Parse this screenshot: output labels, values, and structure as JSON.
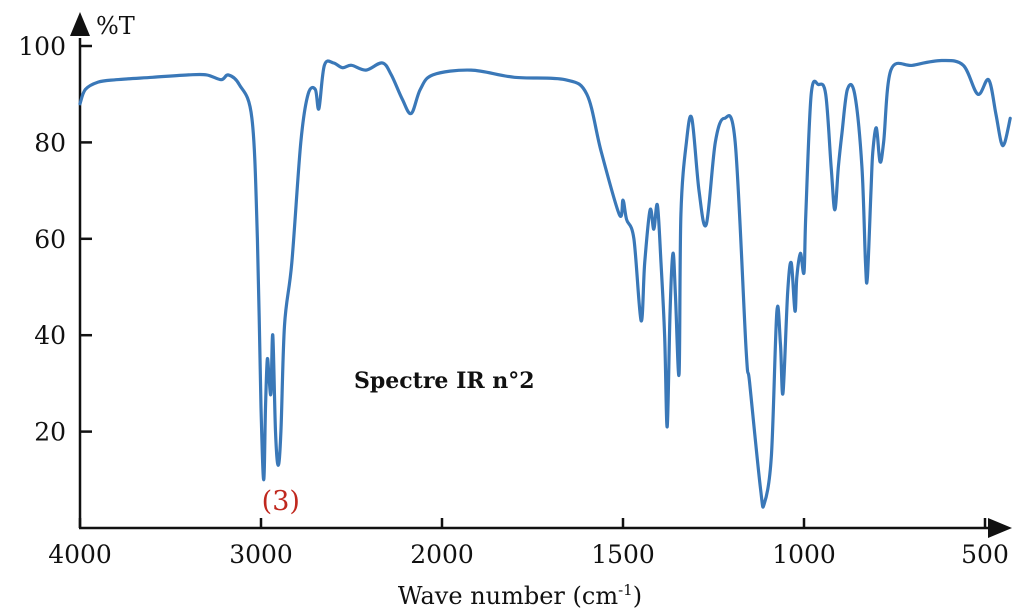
{
  "chart_data": {
    "type": "line",
    "title": "Spectre IR n°2",
    "xlabel_main": "Wave number (cm",
    "xlabel_sup": "-1",
    "xlabel_close": ")",
    "ylabel": "%T",
    "xlim": [
      4000,
      450
    ],
    "ylim": [
      0,
      100
    ],
    "x_reversed": true,
    "grid": false,
    "x_ticks": [
      4000,
      3000,
      2000,
      1500,
      1000,
      500
    ],
    "x_tick_labels": [
      "4000",
      "3000",
      "2000",
      "1500",
      "1000",
      "500"
    ],
    "y_ticks": [
      20,
      40,
      60,
      80,
      100
    ],
    "y_tick_labels": [
      "20",
      "40",
      "60",
      "80",
      "100"
    ],
    "annotation": {
      "text": "(3)",
      "x": 2990,
      "color": "#c0281e"
    },
    "series": [
      {
        "color": "#3a78b8",
        "points": [
          [
            4000,
            88
          ],
          [
            3970,
            91
          ],
          [
            3900,
            92.5
          ],
          [
            3800,
            93
          ],
          [
            3600,
            93.5
          ],
          [
            3400,
            94
          ],
          [
            3300,
            94
          ],
          [
            3220,
            93
          ],
          [
            3180,
            94
          ],
          [
            3120,
            92
          ],
          [
            3050,
            85
          ],
          [
            3020,
            60
          ],
          [
            3000,
            25
          ],
          [
            2985,
            10
          ],
          [
            2975,
            25
          ],
          [
            2965,
            35
          ],
          [
            2955,
            31
          ],
          [
            2945,
            28
          ],
          [
            2935,
            40
          ],
          [
            2920,
            20
          ],
          [
            2905,
            13
          ],
          [
            2890,
            20
          ],
          [
            2870,
            42
          ],
          [
            2830,
            55
          ],
          [
            2780,
            80
          ],
          [
            2740,
            90
          ],
          [
            2700,
            91
          ],
          [
            2680,
            87
          ],
          [
            2650,
            96
          ],
          [
            2600,
            96.5
          ],
          [
            2550,
            95.5
          ],
          [
            2500,
            96
          ],
          [
            2420,
            95
          ],
          [
            2330,
            96.5
          ],
          [
            2280,
            94
          ],
          [
            2220,
            89
          ],
          [
            2170,
            86
          ],
          [
            2120,
            91
          ],
          [
            2050,
            94
          ],
          [
            1920,
            95
          ],
          [
            1800,
            93.5
          ],
          [
            1660,
            93
          ],
          [
            1600,
            90
          ],
          [
            1560,
            78
          ],
          [
            1510,
            65
          ],
          [
            1500,
            68
          ],
          [
            1490,
            64
          ],
          [
            1470,
            60
          ],
          [
            1450,
            43
          ],
          [
            1440,
            55
          ],
          [
            1425,
            66
          ],
          [
            1415,
            62
          ],
          [
            1405,
            67
          ],
          [
            1395,
            55
          ],
          [
            1385,
            40
          ],
          [
            1378,
            21
          ],
          [
            1370,
            45
          ],
          [
            1362,
            57
          ],
          [
            1355,
            48
          ],
          [
            1345,
            32
          ],
          [
            1340,
            65
          ],
          [
            1325,
            80
          ],
          [
            1310,
            85
          ],
          [
            1290,
            70
          ],
          [
            1270,
            63
          ],
          [
            1245,
            80
          ],
          [
            1220,
            85
          ],
          [
            1190,
            80
          ],
          [
            1160,
            37
          ],
          [
            1150,
            30
          ],
          [
            1120,
            8
          ],
          [
            1110,
            5
          ],
          [
            1090,
            15
          ],
          [
            1075,
            45
          ],
          [
            1065,
            38
          ],
          [
            1058,
            28
          ],
          [
            1045,
            49
          ],
          [
            1035,
            55
          ],
          [
            1025,
            45
          ],
          [
            1020,
            52
          ],
          [
            1010,
            57
          ],
          [
            1000,
            53
          ],
          [
            995,
            65
          ],
          [
            980,
            90
          ],
          [
            960,
            92
          ],
          [
            940,
            90
          ],
          [
            925,
            75
          ],
          [
            915,
            66
          ],
          [
            905,
            75
          ],
          [
            895,
            82
          ],
          [
            880,
            91
          ],
          [
            860,
            90
          ],
          [
            840,
            75
          ],
          [
            830,
            55
          ],
          [
            825,
            52
          ],
          [
            815,
            70
          ],
          [
            810,
            78
          ],
          [
            800,
            83
          ],
          [
            790,
            76
          ],
          [
            780,
            80
          ],
          [
            760,
            95
          ],
          [
            700,
            96
          ],
          [
            620,
            97
          ],
          [
            560,
            96
          ],
          [
            520,
            90
          ],
          [
            490,
            93
          ],
          [
            470,
            86
          ],
          [
            455,
            80
          ],
          [
            445,
            80
          ],
          [
            430,
            85
          ]
        ]
      }
    ]
  }
}
